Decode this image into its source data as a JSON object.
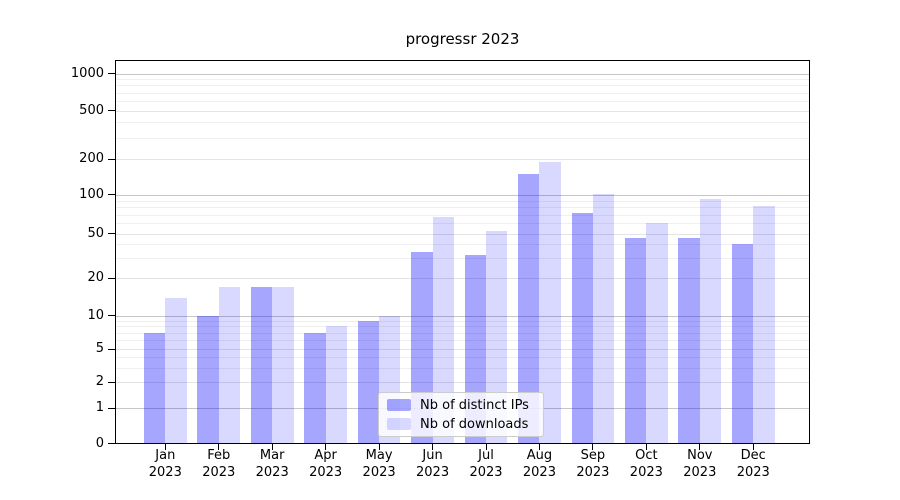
{
  "chart_data": {
    "type": "bar",
    "title": "progressr 2023",
    "categories": [
      "Jan",
      "Feb",
      "Mar",
      "Apr",
      "May",
      "Jun",
      "Jul",
      "Aug",
      "Sep",
      "Oct",
      "Nov",
      "Dec"
    ],
    "year": "2023",
    "series": [
      {
        "name": "Nb of distinct IPs",
        "color": "rgba(0,0,255,0.35)",
        "values": [
          7,
          10,
          17,
          7,
          9,
          34,
          32,
          150,
          72,
          46,
          46,
          40
        ]
      },
      {
        "name": "Nb of downloads",
        "color": "rgba(0,0,255,0.15)",
        "values": [
          14,
          17,
          17,
          8,
          10,
          67,
          52,
          190,
          102,
          60,
          92,
          82
        ]
      }
    ],
    "yticks": [
      0,
      1,
      2,
      5,
      10,
      20,
      50,
      100,
      200,
      500,
      1000
    ],
    "minor_yticks": [
      3,
      4,
      6,
      7,
      8,
      9,
      30,
      40,
      60,
      70,
      80,
      90,
      300,
      400,
      600,
      700,
      800,
      900
    ],
    "scale": "log-like with linear segment to 0",
    "ylim": [
      0,
      1200
    ],
    "xlabel": "",
    "ylabel": "",
    "grid": true,
    "legend_position": "bottom-center",
    "grid_color_decade": "#c6c6c6",
    "grid_color_labeled": "#e3e3e3",
    "grid_color_minor": "#efefef"
  }
}
